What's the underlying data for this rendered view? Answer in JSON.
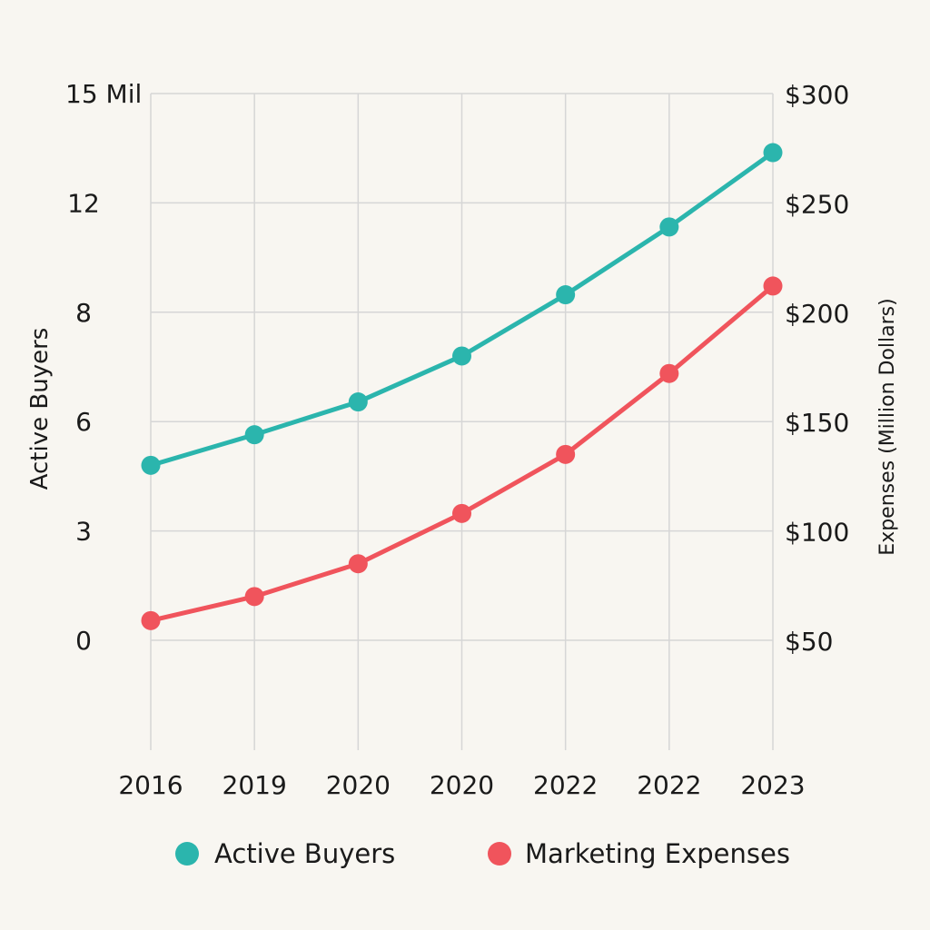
{
  "chart_data": {
    "type": "line",
    "categories": [
      "2016",
      "2019",
      "2020",
      "2020",
      "2022",
      "2022",
      "2023"
    ],
    "y_left": {
      "label": "Active Buyers",
      "ticks": [
        {
          "value": 0,
          "label": "0"
        },
        {
          "value": 3,
          "label": "3"
        },
        {
          "value": 6,
          "label": "6"
        },
        {
          "value": 8,
          "label": "8"
        },
        {
          "value": 12,
          "label": "12"
        },
        {
          "value": 15,
          "label": "15 Mil"
        }
      ]
    },
    "y_right": {
      "label": "Expenses (Million Dollars)",
      "range": [
        0,
        300
      ],
      "ticks": [
        {
          "value": 50,
          "label": "$50"
        },
        {
          "value": 100,
          "label": "$100"
        },
        {
          "value": 150,
          "label": "$150"
        },
        {
          "value": 200,
          "label": "$200"
        },
        {
          "value": 250,
          "label": "$250"
        },
        {
          "value": 300,
          "label": "$300"
        }
      ]
    },
    "series": [
      {
        "name": "Active Buyers",
        "axis": "right",
        "color": "#2bb5ad",
        "values": [
          130,
          144,
          159,
          180,
          208,
          239,
          273
        ]
      },
      {
        "name": "Marketing Expenses",
        "axis": "right",
        "color": "#f0545c",
        "values": [
          59,
          70,
          85,
          108,
          135,
          172,
          212
        ]
      }
    ],
    "legend": [
      {
        "label": "Active Buyers",
        "color": "#2bb5ad"
      },
      {
        "label": "Marketing Expenses",
        "color": "#f0545c"
      }
    ],
    "legend_position": "bottom",
    "grid": true
  }
}
